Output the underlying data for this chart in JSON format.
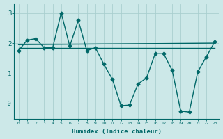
{
  "xlabel": "Humidex (Indice chaleur)",
  "ylabel": "",
  "bg_color": "#cce8e8",
  "line_color": "#006868",
  "grid_color": "#aacfcf",
  "xlim": [
    -0.5,
    23.5
  ],
  "ylim": [
    -0.5,
    3.3
  ],
  "yticks": [
    0,
    1,
    2,
    3
  ],
  "ytick_labels": [
    "-0",
    "1",
    "2",
    "3"
  ],
  "xticks": [
    0,
    1,
    2,
    3,
    4,
    5,
    6,
    7,
    8,
    9,
    10,
    11,
    12,
    13,
    14,
    15,
    16,
    17,
    18,
    19,
    20,
    21,
    22,
    23
  ],
  "series1_x": [
    0,
    1,
    2,
    3,
    4,
    5,
    6,
    7,
    8,
    9,
    10,
    11,
    12,
    13,
    14,
    15,
    16,
    17,
    18,
    19,
    20,
    21,
    22,
    23
  ],
  "series1_y": [
    1.75,
    2.1,
    2.15,
    1.85,
    1.85,
    3.0,
    1.9,
    2.75,
    1.75,
    1.85,
    1.3,
    0.8,
    -0.07,
    -0.05,
    0.65,
    0.85,
    1.65,
    1.65,
    1.1,
    -0.25,
    -0.28,
    1.05,
    1.55,
    2.05
  ],
  "series2_x": [
    0,
    23
  ],
  "series2_y": [
    1.95,
    2.0
  ],
  "series3_x": [
    0,
    10,
    23
  ],
  "series3_y": [
    1.85,
    1.85,
    1.85
  ],
  "marker": "D",
  "marker_size": 2.5,
  "line_width": 1.0
}
